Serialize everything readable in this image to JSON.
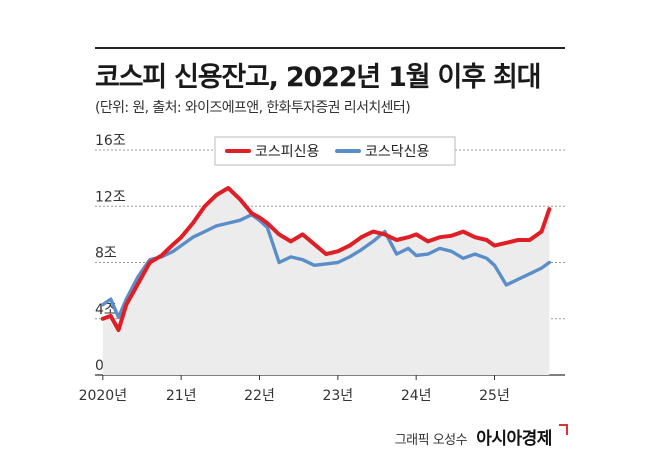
{
  "header": {
    "title": "코스피 신용잔고, 2022년 1월 이후 최대",
    "subtitle": "(단위: 원, 출처: 와이즈에프앤, 한화투자증권 리서치센터)"
  },
  "credit": {
    "graphic": "그래픽 오성수",
    "brand": "아시아경제"
  },
  "chart_data": {
    "type": "line",
    "title": "코스피 신용잔고, 2022년 1월 이후 최대",
    "y_ticks": [
      "16조",
      "12조",
      "8조",
      "4조",
      "0"
    ],
    "y_tick_values": [
      16,
      12,
      8,
      4,
      0
    ],
    "x_ticks": [
      "2020년",
      "21년",
      "22년",
      "23년",
      "24년",
      "25년"
    ],
    "x_tick_values": [
      2020,
      2021,
      2022,
      2023,
      2024,
      2025
    ],
    "xlim": [
      2019.9,
      2025.9
    ],
    "ylim": [
      0,
      16
    ],
    "grid": true,
    "legend_position": "top-center",
    "x": [
      2020.0,
      2020.1,
      2020.2,
      2020.3,
      2020.45,
      2020.6,
      2020.75,
      2020.9,
      2021.0,
      2021.15,
      2021.3,
      2021.45,
      2021.6,
      2021.75,
      2021.9,
      2022.0,
      2022.1,
      2022.25,
      2022.4,
      2022.55,
      2022.7,
      2022.85,
      2023.0,
      2023.15,
      2023.3,
      2023.45,
      2023.6,
      2023.75,
      2023.9,
      2024.0,
      2024.15,
      2024.3,
      2024.45,
      2024.6,
      2024.75,
      2024.9,
      2025.0,
      2025.15,
      2025.3,
      2025.45,
      2025.6,
      2025.7
    ],
    "series": [
      {
        "name": "코스피신용",
        "color": "#e01e26",
        "values": [
          4.0,
          4.2,
          3.2,
          5.0,
          6.5,
          8.0,
          8.5,
          9.3,
          9.8,
          10.8,
          12.0,
          12.8,
          13.3,
          12.5,
          11.5,
          11.2,
          10.8,
          10.0,
          9.5,
          10.0,
          9.3,
          8.6,
          8.8,
          9.2,
          9.8,
          10.2,
          10.0,
          9.6,
          9.8,
          10.0,
          9.5,
          9.8,
          9.9,
          10.2,
          9.8,
          9.6,
          9.2,
          9.4,
          9.6,
          9.6,
          10.2,
          11.8
        ]
      },
      {
        "name": "코스닥신용",
        "color": "#5b8ec9",
        "values": [
          5.0,
          5.4,
          4.1,
          5.4,
          7.0,
          8.2,
          8.4,
          8.8,
          9.2,
          9.8,
          10.2,
          10.6,
          10.8,
          11.0,
          11.4,
          11.0,
          10.5,
          8.0,
          8.4,
          8.2,
          7.8,
          7.9,
          8.0,
          8.4,
          8.9,
          9.5,
          10.2,
          8.6,
          9.0,
          8.5,
          8.6,
          9.0,
          8.8,
          8.3,
          8.6,
          8.3,
          7.8,
          6.4,
          6.8,
          7.2,
          7.6,
          8.0
        ]
      }
    ]
  }
}
